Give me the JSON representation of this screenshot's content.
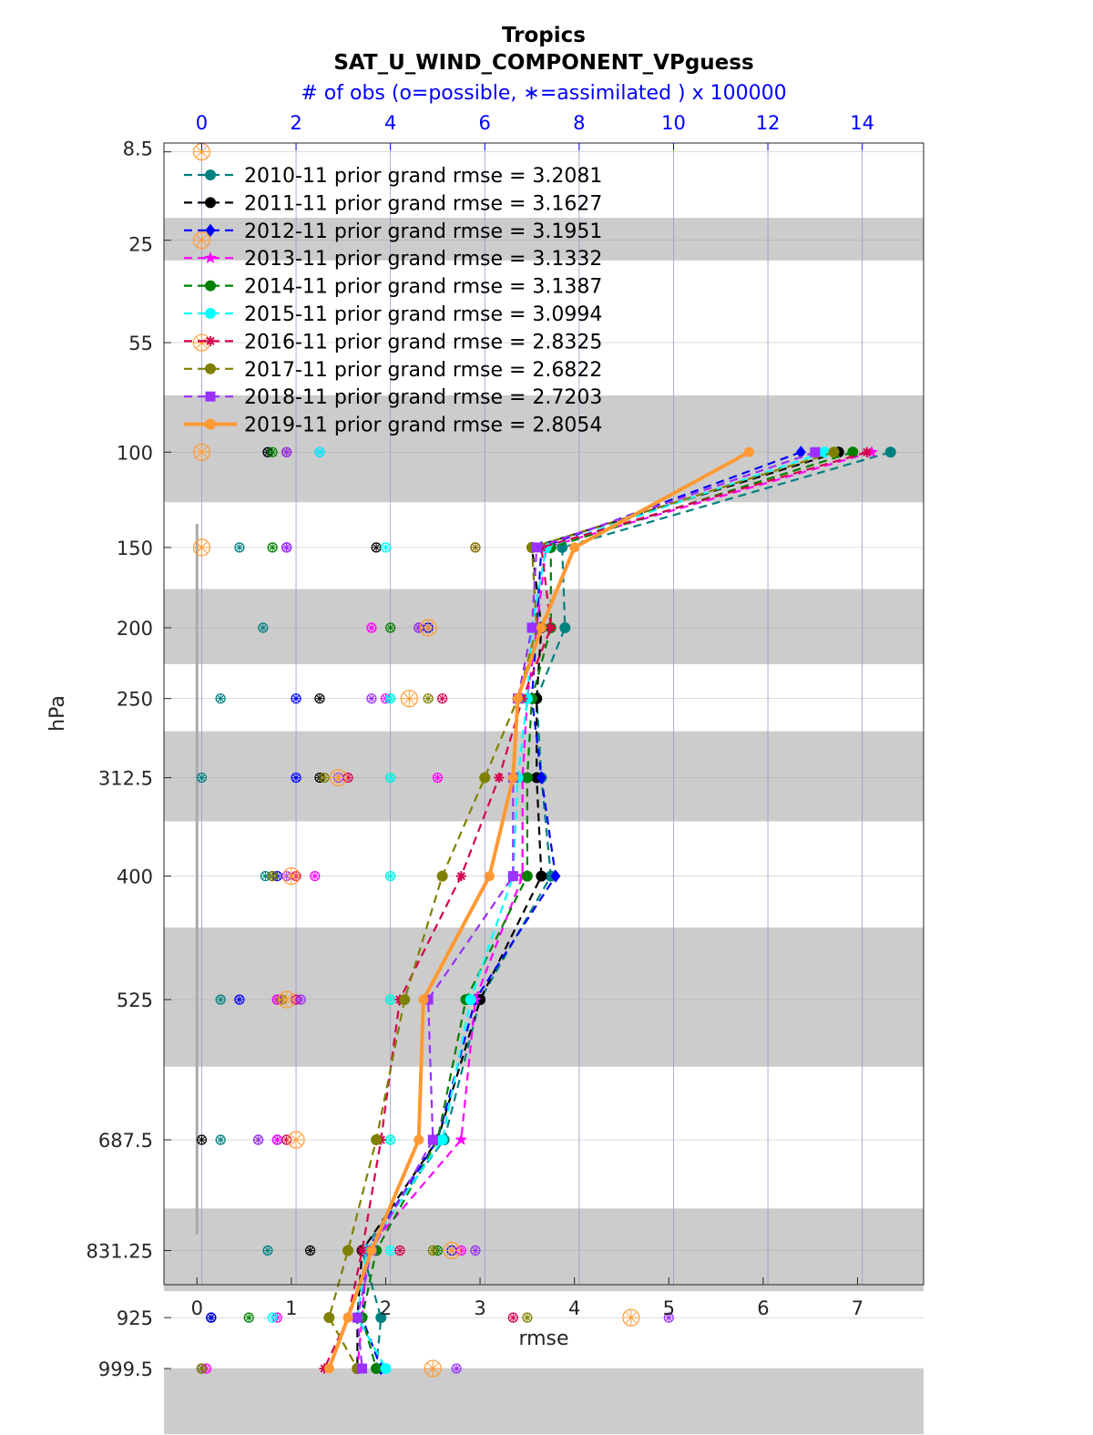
{
  "chart_data": {
    "type": "line",
    "title": "Tropics",
    "subtitle": "SAT_U_WIND_COMPONENT_VPguess",
    "top_axis_label": "# of obs (o=possible, ∗=assimilated ) x 100000",
    "xlabel": "rmse",
    "ylabel": "hPa",
    "xlim": [
      -0.35,
      7.7
    ],
    "x_ticks": [
      "0",
      "1",
      "2",
      "3",
      "4",
      "5",
      "6",
      "7"
    ],
    "top_xlim": [
      -0.8,
      15.3
    ],
    "top_ticks": [
      "0",
      "2",
      "4",
      "6",
      "8",
      "10",
      "12",
      "14"
    ],
    "levels": [
      8.5,
      25,
      55,
      100,
      150,
      200,
      250,
      312.5,
      400,
      525,
      687.5,
      831.25,
      925,
      999.5
    ],
    "level_labels": [
      "8.5",
      "25",
      "55",
      "100",
      "150",
      "200",
      "250",
      "312.5",
      "400",
      "525",
      "687.5",
      "831.25",
      "925",
      "999.5"
    ],
    "shaded_bands": [
      [
        20,
        30
      ],
      [
        75,
        125
      ],
      [
        175,
        225
      ],
      [
        275,
        350
      ],
      [
        450,
        600
      ],
      [
        775,
        887.5
      ],
      [
        1000,
        1100
      ]
    ],
    "series": [
      {
        "name": "2010-11",
        "legend": "2010-11 prior grand rmse = 3.2081",
        "color": "#008080",
        "marker": "circle",
        "rmse": [
          7.35,
          3.87,
          3.9,
          3.6,
          3.65,
          3.75,
          3.0,
          2.62,
          1.75,
          1.95,
          1.9
        ],
        "nposs": [
          1.4,
          0.8,
          1.3,
          0.4,
          0.0,
          1.35,
          0.4,
          0.4,
          1.4,
          0.2,
          0.0
        ],
        "nused": [
          1.4,
          0.8,
          1.3,
          0.4,
          0.0,
          1.35,
          0.4,
          0.4,
          1.4,
          0.2,
          0.0
        ]
      },
      {
        "name": "2011-11",
        "legend": "2011-11 prior grand rmse = 3.1627",
        "color": "#000000",
        "marker": "circle",
        "rmse": [
          6.8,
          3.55,
          3.65,
          3.6,
          3.6,
          3.65,
          3.0,
          2.55,
          1.75,
          1.7,
          1.7
        ],
        "nposs": [
          1.4,
          3.7,
          4.8,
          2.5,
          2.5,
          1.5,
          1.6,
          0.0,
          2.3,
          0.2,
          0.0
        ],
        "nused": [
          1.4,
          3.7,
          4.8,
          2.5,
          2.5,
          1.5,
          1.6,
          0.0,
          2.3,
          0.2,
          0.0
        ]
      },
      {
        "name": "2012-11",
        "legend": "2012-11 prior grand rmse = 3.1951",
        "color": "#0000ff",
        "marker": "diamond",
        "rmse": [
          6.4,
          3.65,
          3.6,
          3.55,
          3.65,
          3.8,
          2.95,
          2.55,
          1.8,
          1.75,
          1.95
        ],
        "nposs": [
          2.5,
          1.8,
          4.8,
          2.0,
          2.0,
          1.6,
          0.8,
          1.6,
          5.3,
          0.2,
          0.0
        ],
        "nused": [
          2.5,
          1.8,
          4.8,
          2.0,
          2.0,
          1.6,
          0.8,
          1.6,
          5.3,
          0.2,
          0.0
        ]
      },
      {
        "name": "2013-11",
        "legend": "2013-11 prior grand rmse = 3.1332",
        "color": "#ff00ff",
        "marker": "star",
        "rmse": [
          7.15,
          3.7,
          3.6,
          3.5,
          3.45,
          3.45,
          2.95,
          2.8,
          1.8,
          1.75,
          1.7
        ],
        "nposs": [
          1.8,
          1.8,
          3.6,
          3.9,
          5.0,
          2.4,
          1.6,
          1.6,
          5.5,
          1.6,
          0.1
        ],
        "nused": [
          1.8,
          1.8,
          3.6,
          3.9,
          5.0,
          2.4,
          1.6,
          1.6,
          5.5,
          1.6,
          0.1
        ]
      },
      {
        "name": "2014-11",
        "legend": "2014-11 prior grand rmse = 3.1387",
        "color": "#008000",
        "marker": "circle",
        "rmse": [
          6.95,
          3.75,
          3.75,
          3.55,
          3.5,
          3.5,
          2.85,
          2.55,
          1.9,
          1.75,
          1.9
        ],
        "nposs": [
          1.5,
          1.5,
          4.0,
          4.0,
          4.0,
          4.0,
          4.0,
          4.0,
          5.0,
          1.0,
          0.0
        ],
        "nused": [
          1.5,
          1.5,
          4.0,
          4.0,
          4.0,
          4.0,
          4.0,
          4.0,
          5.0,
          1.0,
          0.0
        ]
      },
      {
        "name": "2015-11",
        "legend": "2015-11 prior grand rmse = 3.0994",
        "color": "#00ffff",
        "marker": "circle",
        "rmse": [
          6.65,
          3.7,
          3.55,
          3.5,
          3.4,
          3.35,
          2.9,
          2.6,
          1.8,
          1.7,
          2.0
        ],
        "nposs": [
          2.5,
          3.9,
          4.6,
          4.0,
          4.0,
          4.0,
          4.0,
          4.0,
          4.0,
          1.5,
          0.0
        ],
        "nused": [
          2.5,
          3.9,
          4.6,
          4.0,
          4.0,
          4.0,
          4.0,
          4.0,
          4.0,
          1.5,
          0.0
        ]
      },
      {
        "name": "2016-11",
        "legend": "2016-11 prior grand rmse = 2.8325",
        "color": "#d6004f",
        "marker": "asterisk",
        "rmse": [
          7.1,
          3.65,
          3.75,
          3.45,
          3.2,
          2.8,
          2.15,
          1.95,
          1.75,
          1.6,
          1.35
        ],
        "nposs": [
          1.8,
          5.8,
          4.6,
          5.1,
          3.1,
          2.0,
          2.0,
          1.8,
          4.2,
          6.6,
          0.0
        ],
        "nused": [
          1.8,
          5.8,
          4.6,
          5.1,
          3.1,
          2.0,
          2.0,
          1.8,
          4.2,
          6.6,
          0.0
        ]
      },
      {
        "name": "2017-11",
        "legend": "2017-11 prior grand rmse = 2.6822",
        "color": "#808000",
        "marker": "circle",
        "rmse": [
          6.75,
          3.55,
          3.6,
          3.4,
          3.05,
          2.6,
          2.2,
          1.9,
          1.6,
          1.4,
          1.7
        ],
        "nposs": [
          1.8,
          5.8,
          4.6,
          4.8,
          2.6,
          1.5,
          1.7,
          1.2,
          4.9,
          6.9,
          0.0
        ],
        "nused": [
          1.8,
          5.8,
          4.6,
          4.8,
          2.6,
          1.5,
          1.7,
          1.2,
          4.9,
          6.9,
          0.0
        ]
      },
      {
        "name": "2018-11",
        "legend": "2018-11 prior grand rmse = 2.7203",
        "color": "#9b30ff",
        "marker": "square",
        "rmse": [
          6.55,
          3.6,
          3.55,
          3.4,
          3.35,
          3.35,
          2.45,
          2.5,
          1.85,
          1.7,
          1.75
        ],
        "nposs": [
          1.8,
          1.8,
          4.6,
          3.6,
          2.9,
          1.8,
          2.1,
          1.2,
          5.8,
          9.9,
          5.4
        ],
        "nused": [
          1.8,
          1.8,
          4.6,
          3.6,
          2.9,
          1.8,
          2.1,
          1.2,
          5.8,
          9.9,
          5.4
        ]
      },
      {
        "name": "2019-11",
        "legend": "2019-11 prior grand rmse = 2.8054",
        "color": "#ff9933",
        "marker": "circle",
        "rmse": [
          5.85,
          4.0,
          3.65,
          3.4,
          3.35,
          3.1,
          2.4,
          2.35,
          1.85,
          1.6,
          1.4
        ],
        "nposs": [
          0.0,
          0.0,
          0.0,
          0.0,
          0.0,
          4.8,
          4.4,
          2.9,
          1.9,
          1.8,
          2.0,
          5.3,
          9.1,
          4.9
        ],
        "nused": [
          0.0,
          0.0,
          0.0,
          0.0,
          0.0,
          4.8,
          4.4,
          2.9,
          1.9,
          1.8,
          2.0,
          5.3,
          9.1,
          4.9
        ]
      }
    ],
    "rmse_levels": [
      100,
      150,
      200,
      250,
      312.5,
      400,
      525,
      687.5,
      831.25,
      925,
      999.5
    ]
  }
}
